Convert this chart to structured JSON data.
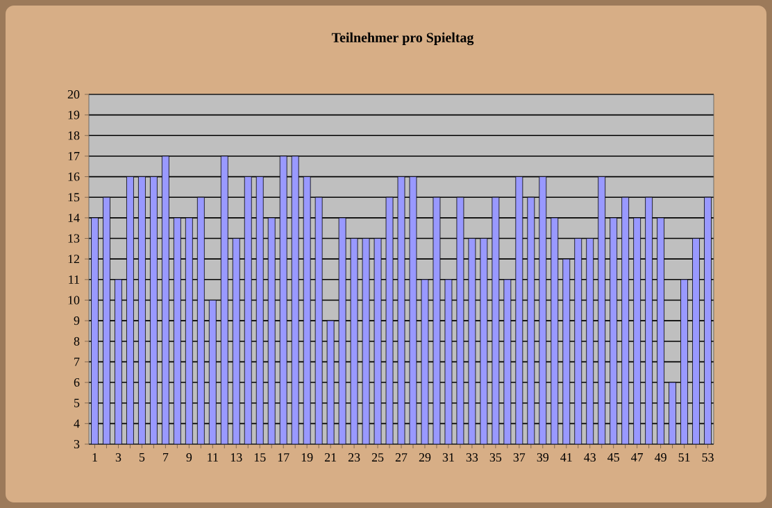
{
  "chart_data": {
    "type": "bar",
    "title": "Teilnehmer pro Spieltag",
    "categories": [
      "1",
      null,
      "3",
      null,
      "5",
      null,
      "7",
      null,
      "9",
      null,
      "11",
      null,
      "13",
      null,
      "15",
      null,
      "17",
      null,
      "19",
      null,
      "21",
      null,
      "23",
      null,
      "25",
      null,
      "27",
      null,
      "29",
      null,
      "31",
      null,
      "33",
      null,
      "35",
      null,
      "37",
      null,
      "39",
      null,
      "41",
      null,
      "43",
      null,
      "45",
      null,
      "47",
      null,
      "49",
      null,
      "51",
      null,
      "53"
    ],
    "values": [
      14,
      15,
      11,
      16,
      16,
      16,
      17,
      14,
      14,
      15,
      10,
      17,
      13,
      16,
      16,
      14,
      17,
      17,
      16,
      15,
      9,
      14,
      13,
      13,
      13,
      15,
      16,
      16,
      11,
      15,
      11,
      15,
      13,
      13,
      15,
      11,
      16,
      15,
      16,
      14,
      12,
      13,
      13,
      16,
      14,
      15,
      14,
      15,
      14,
      6,
      11,
      13,
      15
    ],
    "color": "#9999ff",
    "ylim": [
      3,
      20
    ],
    "yticks": [
      3,
      4,
      5,
      6,
      7,
      8,
      9,
      10,
      11,
      12,
      13,
      14,
      15,
      16,
      17,
      18,
      19,
      20
    ],
    "grid": "y"
  }
}
